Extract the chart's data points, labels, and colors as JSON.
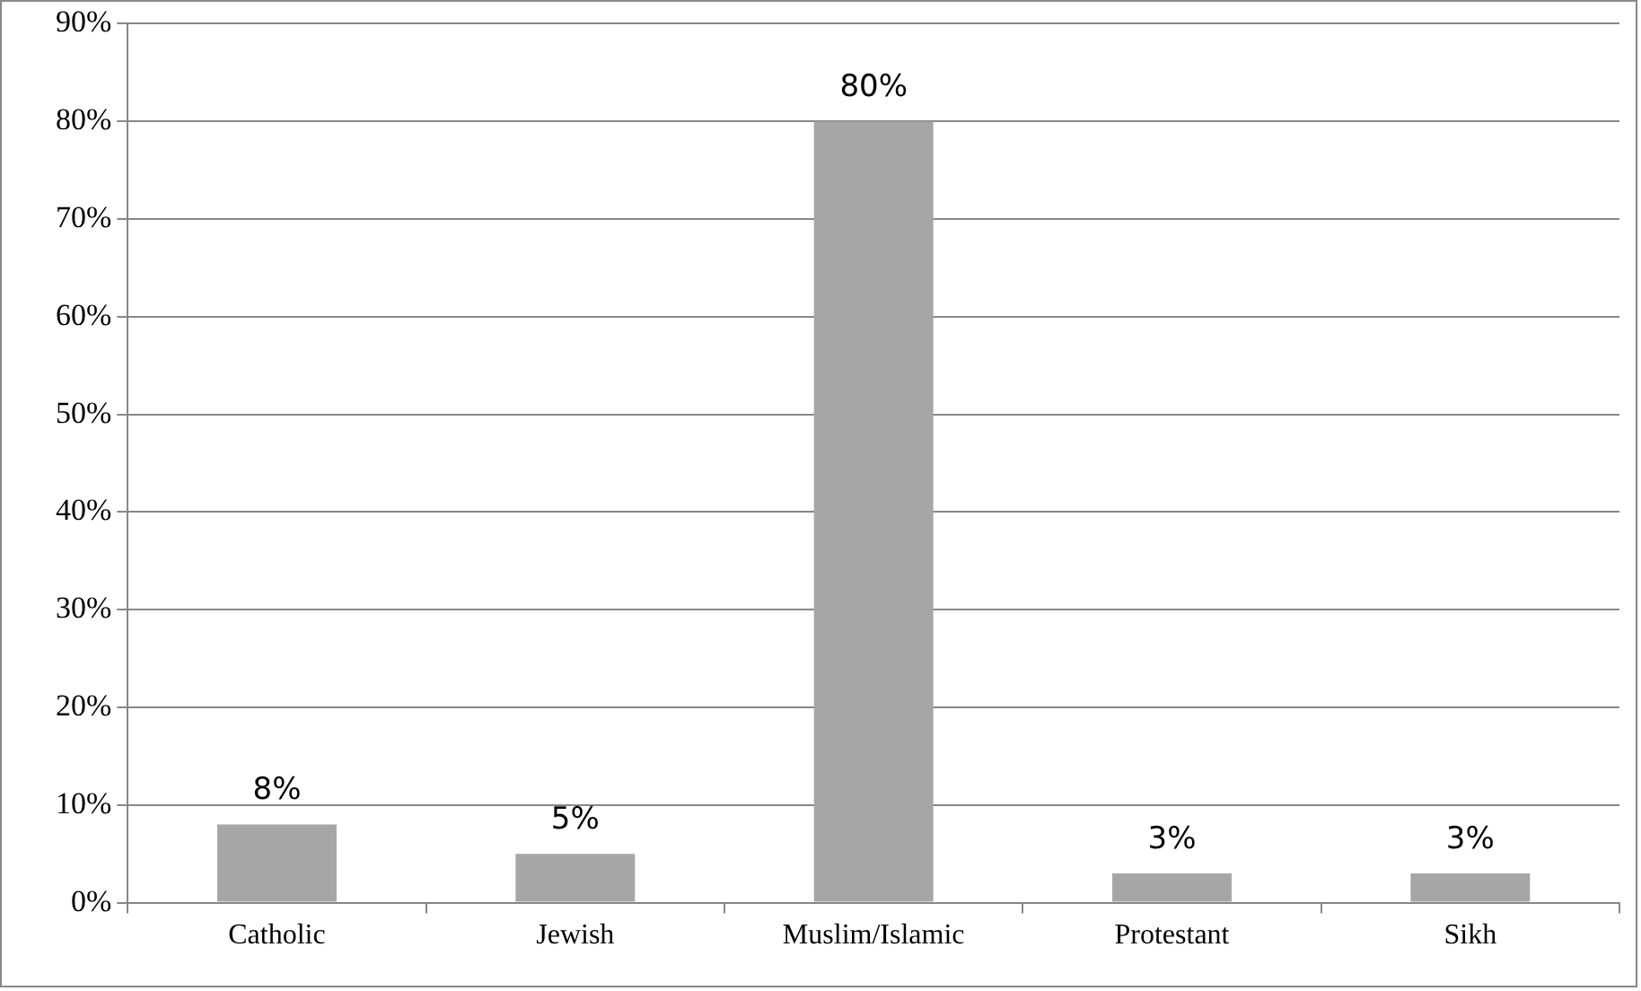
{
  "chart_data": {
    "type": "bar",
    "categories": [
      "Catholic",
      "Jewish",
      "Muslim/Islamic",
      "Protestant",
      "Sikh"
    ],
    "values": [
      8,
      5,
      80,
      3,
      3
    ],
    "value_labels": [
      "8%",
      "5%",
      "80%",
      "3%",
      "3%"
    ],
    "color": "#a6a6a6",
    "ylim": [
      0,
      90
    ],
    "yticks": [
      {
        "value": 0,
        "label": "0%"
      },
      {
        "value": 10,
        "label": "10%"
      },
      {
        "value": 20,
        "label": "20%"
      },
      {
        "value": 30,
        "label": "30%"
      },
      {
        "value": 40,
        "label": "40%"
      },
      {
        "value": 50,
        "label": "50%"
      },
      {
        "value": 60,
        "label": "60%"
      },
      {
        "value": 70,
        "label": "70%"
      },
      {
        "value": 80,
        "label": "80%"
      },
      {
        "value": 90,
        "label": "90%"
      }
    ],
    "grid": "y",
    "legend": false
  }
}
